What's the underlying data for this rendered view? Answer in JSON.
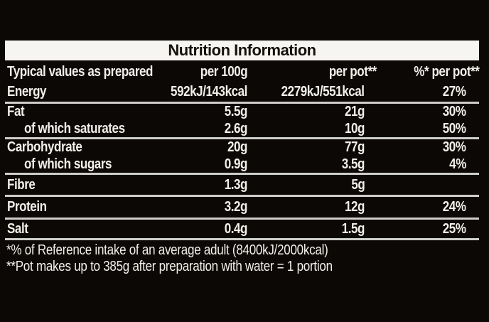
{
  "title": "Nutrition Information",
  "table": {
    "columns": {
      "c1": "Typical values as prepared",
      "c2": "per 100g",
      "c3": "per pot**",
      "c4": "%* per pot**"
    },
    "rows": [
      {
        "label": "Energy",
        "per_100g": "592kJ/143kcal",
        "per_pot": "2279kJ/551kcal",
        "pct_per_pot": "27%"
      },
      {
        "label": "Fat",
        "per_100g": "5.5g",
        "per_pot": "21g",
        "pct_per_pot": "30%"
      },
      {
        "label": "of which saturates",
        "per_100g": "2.6g",
        "per_pot": "10g",
        "pct_per_pot": "50%"
      },
      {
        "label": "Carbohydrate",
        "per_100g": "20g",
        "per_pot": "77g",
        "pct_per_pot": "30%"
      },
      {
        "label": "of which sugars",
        "per_100g": "0.9g",
        "per_pot": "3.5g",
        "pct_per_pot": "4%"
      },
      {
        "label": "Fibre",
        "per_100g": "1.3g",
        "per_pot": "5g",
        "pct_per_pot": ""
      },
      {
        "label": "Protein",
        "per_100g": "3.2g",
        "per_pot": "12g",
        "pct_per_pot": "24%"
      },
      {
        "label": "Salt",
        "per_100g": "0.4g",
        "per_pot": "1.5g",
        "pct_per_pot": "25%"
      }
    ]
  },
  "footnotes": [
    "*% of Reference intake of an average adult (8400kJ/2000kcal)",
    "**Pot makes up to 385g after preparation with water = 1 portion"
  ],
  "colors": {
    "background": "#0c0806",
    "title_bar": "#f6f5f1",
    "title_text": "#16110d",
    "body_text": "#f1efe9",
    "divider": "#cfcecb"
  }
}
